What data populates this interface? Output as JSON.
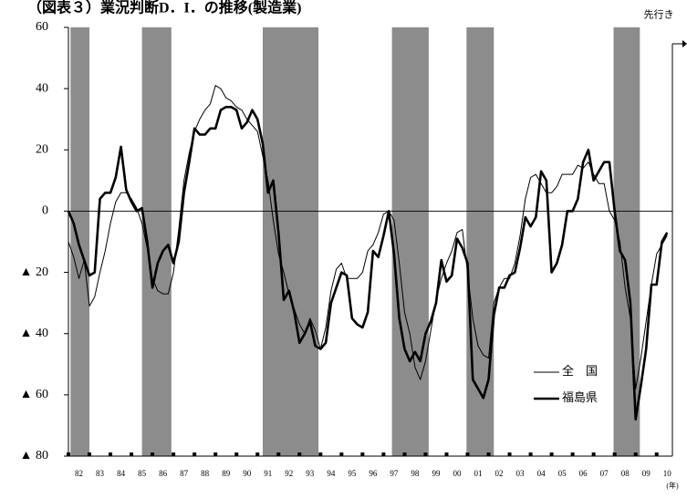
{
  "chart_data": {
    "type": "line",
    "title": "（図表３）業況判断D．I．の推移(製造業)",
    "forecast_label": "先行き",
    "x_unit": "(年)",
    "x": [
      1982,
      1982.25,
      1982.5,
      1982.75,
      1983,
      1983.25,
      1983.5,
      1983.75,
      1984,
      1984.25,
      1984.5,
      1984.75,
      1985,
      1985.25,
      1985.5,
      1985.75,
      1986,
      1986.25,
      1986.5,
      1986.75,
      1987,
      1987.25,
      1987.5,
      1987.75,
      1988,
      1988.25,
      1988.5,
      1988.75,
      1989,
      1989.25,
      1989.5,
      1989.75,
      1990,
      1990.25,
      1990.5,
      1990.75,
      1991,
      1991.25,
      1991.5,
      1991.75,
      1992,
      1992.25,
      1992.5,
      1992.75,
      1993,
      1993.25,
      1993.5,
      1993.75,
      1994,
      1994.25,
      1994.5,
      1994.75,
      1995,
      1995.25,
      1995.5,
      1995.75,
      1996,
      1996.25,
      1996.5,
      1996.75,
      1997,
      1997.25,
      1997.5,
      1997.75,
      1998,
      1998.25,
      1998.5,
      1998.75,
      1999,
      1999.25,
      1999.5,
      1999.75,
      2000,
      2000.25,
      2000.5,
      2000.75,
      2001,
      2001.25,
      2001.5,
      2001.75,
      2002,
      2002.25,
      2002.5,
      2002.75,
      2003,
      2003.25,
      2003.5,
      2003.75,
      2004,
      2004.25,
      2004.5,
      2004.75,
      2005,
      2005.25,
      2005.5,
      2005.75,
      2006,
      2006.25,
      2006.5,
      2006.75,
      2007,
      2007.25,
      2007.5,
      2007.75,
      2008,
      2008.25,
      2008.5,
      2008.75,
      2009,
      2009.25,
      2009.5,
      2009.75,
      2010,
      2010.25,
      2010.5
    ],
    "series": [
      {
        "name": "全　国",
        "color": "#000000",
        "width": 1,
        "values": [
          -10,
          -15,
          -22,
          -16,
          -31,
          -28,
          -20,
          -13,
          -4,
          3,
          6,
          6,
          4,
          1,
          -4,
          -12,
          -22,
          -26,
          -27,
          -27,
          -20,
          -6,
          10,
          19,
          26,
          30,
          33,
          35,
          41,
          40,
          37,
          36,
          34,
          33,
          30,
          28,
          26,
          18,
          10,
          -3,
          -14,
          -20,
          -27,
          -32,
          -37,
          -40,
          -35,
          -39,
          -45,
          -38,
          -26,
          -19,
          -17,
          -22,
          -22,
          -22,
          -20,
          -13,
          -11,
          -7,
          -1,
          0,
          -3,
          -17,
          -33,
          -40,
          -51,
          -55,
          -49,
          -39,
          -29,
          -22,
          -17,
          -13,
          -7,
          -6,
          -20,
          -35,
          -44,
          -47,
          -48,
          -30,
          -25,
          -22,
          -22,
          -17,
          -8,
          4,
          11,
          12,
          9,
          6,
          6,
          8,
          12,
          12,
          12,
          15,
          14,
          16,
          12,
          9,
          9,
          0,
          -3,
          -10,
          -25,
          -35,
          -58,
          -48,
          -36,
          -24,
          -14,
          -11,
          -8
        ]
      },
      {
        "name": "福島県",
        "color": "#000000",
        "width": 2.6,
        "values": [
          0,
          -4,
          -11,
          -16,
          -21,
          -20,
          4,
          6,
          6,
          11,
          21,
          7,
          3,
          0,
          1,
          -10,
          -25,
          -17,
          -13,
          -11,
          -17,
          -10,
          6,
          16,
          27,
          25,
          25,
          27,
          27,
          33,
          34,
          34,
          33,
          27,
          29,
          33,
          30,
          22,
          6,
          10,
          -7,
          -29,
          -26,
          -33,
          -43,
          -40,
          -36,
          -44,
          -45,
          -43,
          -30,
          -25,
          -20,
          -21,
          -35,
          -37,
          -38,
          -33,
          -13,
          -15,
          -8,
          0,
          -14,
          -35,
          -45,
          -49,
          -46,
          -49,
          -40,
          -36,
          -30,
          -16,
          -23,
          -21,
          -9,
          -12,
          -17,
          -55,
          -58,
          -61,
          -55,
          -34,
          -25,
          -25,
          -21,
          -20,
          -12,
          -2,
          -5,
          -2,
          13,
          10,
          -20,
          -17,
          -11,
          0,
          0,
          4,
          16,
          20,
          10,
          13,
          16,
          16,
          0,
          -13,
          -16,
          -30,
          -68,
          -57,
          -45,
          -24,
          -24,
          -10,
          -7
        ]
      }
    ],
    "shaded_periods": [
      [
        1982.1,
        1983.0
      ],
      [
        1985.5,
        1986.9
      ],
      [
        1991.25,
        1993.9
      ],
      [
        1997.4,
        1999.15
      ],
      [
        2000.95,
        2002.25
      ],
      [
        2007.95,
        2009.2
      ]
    ],
    "shade_color": "#8c8c8c",
    "xlim": [
      1982,
      2010.75
    ],
    "xticks": [
      {
        "value": 1982.5,
        "label": "82"
      },
      {
        "value": 1983.5,
        "label": "83"
      },
      {
        "value": 1984.5,
        "label": "84"
      },
      {
        "value": 1985.5,
        "label": "85"
      },
      {
        "value": 1986.5,
        "label": "86"
      },
      {
        "value": 1987.5,
        "label": "87"
      },
      {
        "value": 1988.5,
        "label": "88"
      },
      {
        "value": 1989.5,
        "label": "89"
      },
      {
        "value": 1990.5,
        "label": "90"
      },
      {
        "value": 1991.5,
        "label": "91"
      },
      {
        "value": 1992.5,
        "label": "92"
      },
      {
        "value": 1993.5,
        "label": "93"
      },
      {
        "value": 1994.5,
        "label": "94"
      },
      {
        "value": 1995.5,
        "label": "95"
      },
      {
        "value": 1996.5,
        "label": "96"
      },
      {
        "value": 1997.5,
        "label": "97"
      },
      {
        "value": 1998.5,
        "label": "98"
      },
      {
        "value": 1999.5,
        "label": "99"
      },
      {
        "value": 2000.5,
        "label": "00"
      },
      {
        "value": 2001.5,
        "label": "01"
      },
      {
        "value": 2002.5,
        "label": "02"
      },
      {
        "value": 2003.5,
        "label": "03"
      },
      {
        "value": 2004.5,
        "label": "04"
      },
      {
        "value": 2005.5,
        "label": "05"
      },
      {
        "value": 2006.5,
        "label": "06"
      },
      {
        "value": 2007.5,
        "label": "07"
      },
      {
        "value": 2008.5,
        "label": "08"
      },
      {
        "value": 2009.5,
        "label": "09"
      },
      {
        "value": 2010.5,
        "label": "10"
      }
    ],
    "ylim": [
      -80,
      60
    ],
    "yticks": [
      60,
      40,
      20,
      0,
      {
        "value": -20,
        "label": "▲ 20"
      },
      {
        "value": -40,
        "label": "▲ 40"
      },
      {
        "value": -60,
        "label": "▲ 60"
      },
      {
        "value": -80,
        "label": "▲ 80"
      }
    ],
    "legend": "lower right"
  }
}
